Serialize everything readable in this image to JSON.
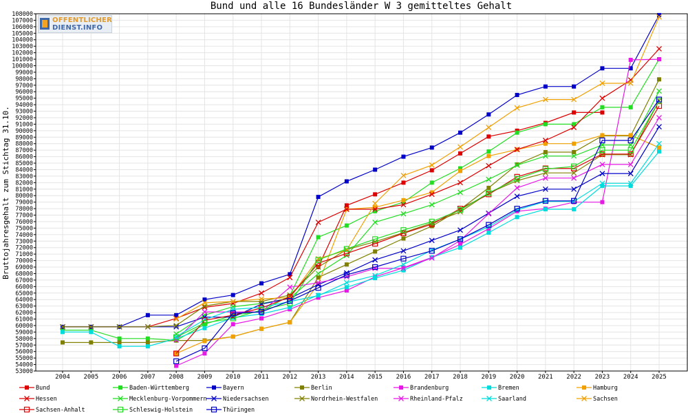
{
  "chart_data": {
    "type": "line",
    "title": "Bund und alle 16 Bundesländer W 3 gemitteltes Gehalt",
    "ylabel": "Bruttojahresgehalt zum Stichtag 31.10.",
    "xlabel": "",
    "ylim": [
      53000,
      108000
    ],
    "grid": true,
    "legend_position": "bottom",
    "x": [
      2004,
      2005,
      2006,
      2007,
      2008,
      2009,
      2010,
      2011,
      2012,
      2013,
      2014,
      2015,
      2016,
      2017,
      2018,
      2019,
      2020,
      2021,
      2022,
      2023,
      2024,
      2025
    ],
    "yticks": [
      53000,
      54000,
      55000,
      56000,
      57000,
      58000,
      59000,
      60000,
      61000,
      62000,
      63000,
      64000,
      65000,
      66000,
      67000,
      68000,
      69000,
      70000,
      71000,
      72000,
      73000,
      74000,
      75000,
      76000,
      77000,
      78000,
      79000,
      80000,
      81000,
      82000,
      83000,
      84000,
      85000,
      86000,
      87000,
      88000,
      89000,
      90000,
      91000,
      92000,
      93000,
      94000,
      95000,
      96000,
      97000,
      98000,
      99000,
      100000,
      101000,
      102000,
      103000,
      104000,
      105000,
      106000,
      107000,
      108000
    ],
    "series": [
      {
        "name": "Bund",
        "color": "#dc0000",
        "marker": "square-filled",
        "values": [
          null,
          null,
          null,
          null,
          null,
          null,
          null,
          null,
          null,
          69000,
          78500,
          80200,
          82000,
          83900,
          86500,
          89100,
          90000,
          91200,
          92800,
          92800,
          null,
          null
        ]
      },
      {
        "name": "Baden-Württemberg",
        "color": "#22dd22",
        "marker": "square-filled",
        "values": [
          59300,
          59300,
          58000,
          58000,
          57700,
          60200,
          61600,
          62200,
          64600,
          73600,
          75400,
          77600,
          79000,
          82000,
          84200,
          86800,
          89700,
          91000,
          91000,
          93600,
          93600,
          101000
        ]
      },
      {
        "name": "Bayern",
        "color": "#0000c8",
        "marker": "square-filled",
        "values": [
          59800,
          59800,
          59800,
          61600,
          61600,
          64000,
          64700,
          66500,
          67900,
          79800,
          82200,
          84000,
          86000,
          87400,
          89700,
          92500,
          95500,
          96800,
          96800,
          99600,
          99600,
          107800
        ]
      },
      {
        "name": "Berlin",
        "color": "#808000",
        "marker": "square-filled",
        "values": [
          57400,
          57400,
          57400,
          57400,
          57700,
          57700,
          58300,
          59500,
          60500,
          67400,
          69400,
          71400,
          73400,
          75300,
          77900,
          81200,
          84800,
          86700,
          86700,
          89200,
          89200,
          97900
        ]
      },
      {
        "name": "Brandenburg",
        "color": "#e619e6",
        "marker": "square-filled",
        "values": [
          null,
          null,
          null,
          null,
          53800,
          55700,
          60200,
          61100,
          62500,
          64300,
          65400,
          67500,
          68900,
          70500,
          72500,
          74900,
          77600,
          78000,
          79000,
          79000,
          100900,
          101000
        ]
      },
      {
        "name": "Bremen",
        "color": "#00dcdc",
        "marker": "square-filled",
        "values": [
          59000,
          59000,
          56800,
          56800,
          58000,
          59600,
          61200,
          61800,
          62800,
          64700,
          65900,
          67300,
          68500,
          70500,
          72000,
          74300,
          76700,
          77900,
          77900,
          81500,
          81500,
          86800
        ]
      },
      {
        "name": "Hamburg",
        "color": "#f0a000",
        "marker": "square-filled",
        "values": [
          null,
          null,
          null,
          null,
          55700,
          57600,
          58300,
          59500,
          60500,
          66400,
          77900,
          78200,
          79300,
          80500,
          83800,
          86100,
          87100,
          88000,
          88000,
          89300,
          89300,
          87400
        ]
      },
      {
        "name": "Hessen",
        "color": "#dc0000",
        "marker": "x",
        "values": [
          59800,
          59800,
          59800,
          59800,
          61100,
          62800,
          63400,
          65000,
          67400,
          75900,
          77900,
          77900,
          78600,
          80200,
          82000,
          84600,
          87100,
          88500,
          90500,
          95000,
          97800,
          102600
        ]
      },
      {
        "name": "Mecklenburg-Vorpommern",
        "color": "#22dd22",
        "marker": "x",
        "values": [
          null,
          null,
          null,
          null,
          58700,
          61600,
          62900,
          63400,
          64200,
          68000,
          70800,
          75900,
          77200,
          78600,
          80500,
          82500,
          84700,
          86100,
          86100,
          87800,
          87800,
          96100
        ]
      },
      {
        "name": "Niedersachsen",
        "color": "#0000c8",
        "marker": "x",
        "values": [
          59800,
          59800,
          59800,
          59800,
          59800,
          61300,
          61300,
          63300,
          64200,
          66300,
          68100,
          70100,
          71500,
          73100,
          74700,
          77300,
          79900,
          81000,
          81000,
          83400,
          83400,
          90600
        ]
      },
      {
        "name": "Nordrhein-Westfalen",
        "color": "#808000",
        "marker": "x",
        "values": [
          59800,
          59800,
          59800,
          59800,
          60000,
          63000,
          63700,
          63700,
          64700,
          69000,
          71700,
          72900,
          74300,
          75800,
          77500,
          80400,
          82300,
          83500,
          83500,
          86300,
          86300,
          94600
        ]
      },
      {
        "name": "Rheinland-Pfalz",
        "color": "#e619e6",
        "marker": "x",
        "values": [
          null,
          null,
          null,
          null,
          57800,
          62100,
          62100,
          62100,
          65900,
          66600,
          67500,
          68800,
          68800,
          70400,
          73100,
          77200,
          81200,
          82700,
          82700,
          84800,
          84800,
          92000
        ]
      },
      {
        "name": "Saarland",
        "color": "#00dcdc",
        "marker": "x",
        "values": [
          null,
          null,
          null,
          null,
          58300,
          60900,
          62500,
          62800,
          63700,
          64600,
          66600,
          67700,
          69400,
          71600,
          73300,
          75200,
          77800,
          79100,
          79100,
          81900,
          81900,
          88000
        ]
      },
      {
        "name": "Sachsen",
        "color": "#f0a000",
        "marker": "x",
        "values": [
          null,
          null,
          null,
          null,
          61000,
          63500,
          63700,
          64100,
          64300,
          70300,
          71600,
          78800,
          83100,
          84700,
          87500,
          90500,
          93500,
          94800,
          94800,
          97300,
          97300,
          107500
        ]
      },
      {
        "name": "Sachsen-Anhalt",
        "color": "#dc0000",
        "marker": "square-open",
        "values": [
          null,
          null,
          null,
          null,
          55700,
          60800,
          61600,
          62700,
          64400,
          69600,
          71100,
          72600,
          74200,
          75600,
          78000,
          80200,
          82900,
          84200,
          84200,
          86400,
          86400,
          93800
        ]
      },
      {
        "name": "Schleswig-Holstein",
        "color": "#22dd22",
        "marker": "square-open",
        "values": [
          null,
          null,
          null,
          null,
          58200,
          60400,
          61100,
          62400,
          63400,
          70100,
          71800,
          73300,
          74700,
          76000,
          77800,
          80400,
          82600,
          84100,
          84500,
          87000,
          87000,
          94600
        ]
      },
      {
        "name": "Thüringen",
        "color": "#0000c8",
        "marker": "square-open",
        "values": [
          null,
          null,
          null,
          null,
          54500,
          56500,
          61900,
          62100,
          63800,
          65800,
          67800,
          69000,
          70300,
          71500,
          73300,
          75500,
          78000,
          79200,
          79200,
          88500,
          88500,
          94800
        ]
      }
    ]
  },
  "logo": {
    "line1": "OFFENTLICHER",
    "line2": "DIENST.INFO"
  }
}
